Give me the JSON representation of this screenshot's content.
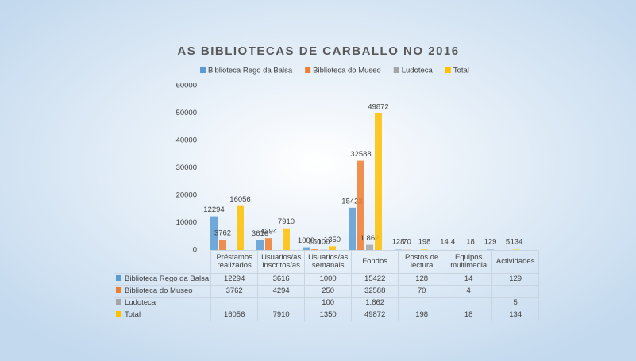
{
  "chart_data": {
    "type": "bar",
    "title": "AS BIBLIOTECAS DE CARBALLO NO 2016",
    "categories": [
      "Préstamos realizados",
      "Usuarios/as inscritos/as",
      "Usuarios/as semanais",
      "Fondos",
      "Postos de lectura",
      "Equipos multimedia",
      "Actividades"
    ],
    "series": [
      {
        "name": "Biblioteca Rego da Balsa",
        "color": "#5b9bd5",
        "values": [
          12294,
          3616,
          1000,
          15422,
          128,
          14,
          129
        ]
      },
      {
        "name": "Biblioteca do Museo",
        "color": "#ed7d31",
        "values": [
          3762,
          4294,
          250,
          32588,
          70,
          4,
          null
        ]
      },
      {
        "name": "Ludoteca",
        "color": "#a5a5a5",
        "values": [
          null,
          null,
          100,
          1862,
          null,
          null,
          5
        ],
        "value_labels": [
          null,
          null,
          "100",
          "1.862",
          null,
          null,
          "5"
        ]
      },
      {
        "name": "Total",
        "color": "#ffc000",
        "values": [
          16056,
          7910,
          1350,
          49872,
          198,
          18,
          134
        ]
      }
    ],
    "ylim": [
      0,
      60000
    ],
    "yticks": [
      0,
      10000,
      20000,
      30000,
      40000,
      50000,
      60000
    ],
    "grid": false,
    "legend": "top"
  }
}
